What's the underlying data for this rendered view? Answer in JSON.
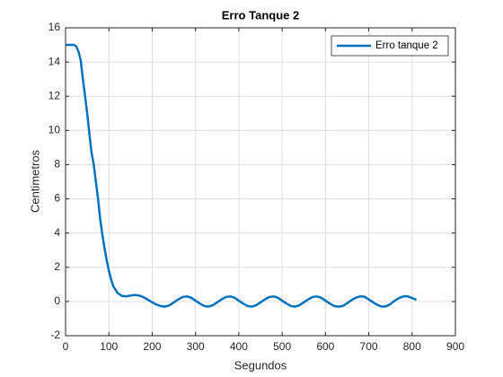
{
  "chart_data": {
    "type": "line",
    "title": "Erro Tanque 2",
    "xlabel": "Segundos",
    "ylabel": "Centimetros",
    "xlim": [
      0,
      900
    ],
    "ylim": [
      -2,
      16
    ],
    "xticks": [
      0,
      100,
      200,
      300,
      400,
      500,
      600,
      700,
      800,
      900
    ],
    "yticks": [
      -2,
      0,
      2,
      4,
      6,
      8,
      10,
      12,
      14,
      16
    ],
    "grid": true,
    "legend": "upper right",
    "x": [
      0,
      10,
      20,
      25,
      30,
      35,
      40,
      45,
      50,
      55,
      60,
      65,
      70,
      75,
      80,
      85,
      90,
      95,
      100,
      105,
      110,
      120,
      130,
      140,
      150,
      160,
      170,
      180,
      190,
      200,
      210,
      220,
      230,
      240,
      250,
      260,
      270,
      280,
      290,
      300,
      310,
      320,
      330,
      340,
      350,
      360,
      370,
      380,
      390,
      400,
      410,
      420,
      430,
      440,
      450,
      460,
      470,
      480,
      490,
      500,
      510,
      520,
      530,
      540,
      550,
      560,
      570,
      580,
      590,
      600,
      610,
      620,
      630,
      640,
      650,
      660,
      670,
      680,
      690,
      700,
      710,
      720,
      730,
      740,
      750,
      760,
      770,
      780,
      790,
      800,
      810
    ],
    "series": [
      {
        "name": "Erro tanque 2",
        "color": "#0072bd",
        "values": [
          15,
          15,
          15,
          14.9,
          14.6,
          14.1,
          13,
          12,
          11,
          9.8,
          8.7,
          8,
          7,
          6,
          4.8,
          3.9,
          3.1,
          2.4,
          1.8,
          1.3,
          0.9,
          0.5,
          0.33,
          0.3,
          0.35,
          0.38,
          0.35,
          0.25,
          0.1,
          -0.05,
          -0.18,
          -0.27,
          -0.3,
          -0.22,
          -0.05,
          0.12,
          0.26,
          0.3,
          0.22,
          0.05,
          -0.12,
          -0.26,
          -0.3,
          -0.22,
          -0.05,
          0.12,
          0.26,
          0.3,
          0.22,
          0.05,
          -0.12,
          -0.26,
          -0.3,
          -0.22,
          -0.05,
          0.12,
          0.26,
          0.3,
          0.22,
          0.05,
          -0.12,
          -0.26,
          -0.3,
          -0.22,
          -0.05,
          0.12,
          0.26,
          0.3,
          0.22,
          0.05,
          -0.12,
          -0.26,
          -0.3,
          -0.26,
          -0.1,
          0.08,
          0.22,
          0.3,
          0.28,
          0.12,
          -0.05,
          -0.2,
          -0.3,
          -0.28,
          -0.15,
          0.05,
          0.2,
          0.3,
          0.3,
          0.2,
          0.1
        ]
      }
    ]
  }
}
